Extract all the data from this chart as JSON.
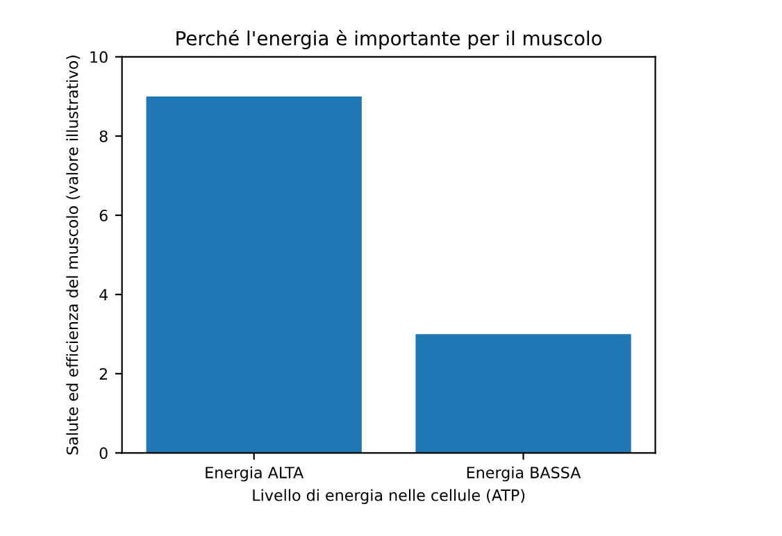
{
  "chart_data": {
    "type": "bar",
    "title": "Perché l'energia è importante per il muscolo",
    "xlabel": "Livello di energia nelle cellule (ATP)",
    "ylabel": "Salute ed efficienza del muscolo (valore illustrativo)",
    "categories": [
      "Energia ALTA",
      "Energia BASSA"
    ],
    "values": [
      9,
      3
    ],
    "color": "#1f77b4",
    "ylim": [
      0,
      10
    ],
    "yticks": [
      0,
      2,
      4,
      6,
      8,
      10
    ],
    "grid": false
  }
}
